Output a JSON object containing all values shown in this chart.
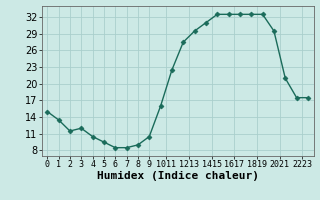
{
  "x": [
    0,
    1,
    2,
    3,
    4,
    5,
    6,
    7,
    8,
    9,
    10,
    11,
    12,
    13,
    14,
    15,
    16,
    17,
    18,
    19,
    20,
    21,
    22,
    23
  ],
  "y": [
    15,
    13.5,
    11.5,
    12,
    10.5,
    9.5,
    8.5,
    8.5,
    9,
    10.5,
    16,
    22.5,
    27.5,
    29.5,
    31,
    32.5,
    32.5,
    32.5,
    32.5,
    32.5,
    29.5,
    21,
    17.5,
    17.5
  ],
  "line_color": "#1a6b5a",
  "marker": "D",
  "marker_size": 2.5,
  "bg_color": "#cce9e5",
  "grid_color": "#aacfcc",
  "xlabel": "Humidex (Indice chaleur)",
  "xlabel_fontsize": 8,
  "yticks": [
    8,
    11,
    14,
    17,
    20,
    23,
    26,
    29,
    32
  ],
  "ylim": [
    7,
    34
  ],
  "xlim": [
    -0.5,
    23.5
  ],
  "tick_fontsize": 7,
  "linewidth": 1.0
}
